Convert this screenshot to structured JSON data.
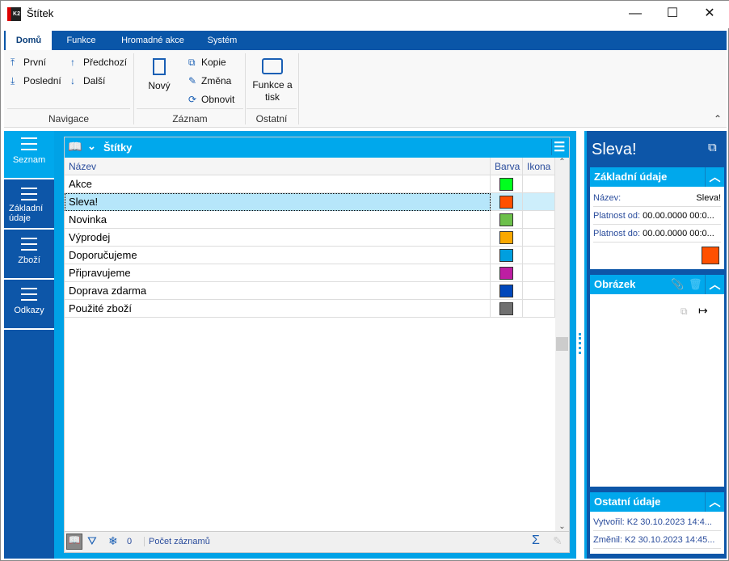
{
  "window": {
    "title": "Štítek",
    "minimize": "—",
    "maximize": "☐",
    "close": "✕"
  },
  "ribbon": {
    "tabs": [
      "Domů",
      "Funkce",
      "Hromadné akce",
      "Systém"
    ],
    "active_tab": "Domů",
    "navigace": {
      "label": "Navigace",
      "first": "První",
      "last": "Poslední",
      "prev": "Předchozí",
      "next": "Další"
    },
    "zaznam": {
      "label": "Záznam",
      "new": "Nový",
      "copy": "Kopie",
      "edit": "Změna",
      "refresh": "Obnovit"
    },
    "ostatni": {
      "label": "Ostatní",
      "print": "Funkce a tisk"
    }
  },
  "leftnav": {
    "items": [
      "Seznam",
      "Základní údaje",
      "Zboží",
      "Odkazy"
    ],
    "active": "Seznam"
  },
  "grid": {
    "title": "Štítky",
    "columns": [
      "Název",
      "Barva",
      "Ikona"
    ],
    "rows": [
      {
        "name": "Akce",
        "color": "#00ff1e"
      },
      {
        "name": "Sleva!",
        "color": "#ff5000",
        "selected": true
      },
      {
        "name": "Novinka",
        "color": "#6cc04a"
      },
      {
        "name": "Výprodej",
        "color": "#f9a800"
      },
      {
        "name": "Doporučujeme",
        "color": "#009fdf"
      },
      {
        "name": "Připravujeme",
        "color": "#bd1ea2"
      },
      {
        "name": "Doprava zdarma",
        "color": "#0047bb"
      },
      {
        "name": "Použité zboží",
        "color": "#707070"
      }
    ],
    "footer": {
      "count": "0",
      "count_label": "Počet záznamů",
      "sum": "Σ"
    }
  },
  "detail": {
    "title": "Sleva!",
    "basic": {
      "header": "Základní údaje",
      "name_label": "Název:",
      "name_value": "Sleva!",
      "from_label": "Platnost od:",
      "from_value": "00.00.0000 00:0...",
      "to_label": "Platnost do:",
      "to_value": "00.00.0000 00:0...",
      "color": "#ff5000"
    },
    "image": {
      "header": "Obrázek"
    },
    "other": {
      "header": "Ostatní údaje",
      "created_label": "Vytvořil:",
      "created_value": "K2 30.10.2023 14:4...",
      "changed_label": "Změnil:",
      "changed_value": "K2 30.10.2023 14:45..."
    }
  }
}
